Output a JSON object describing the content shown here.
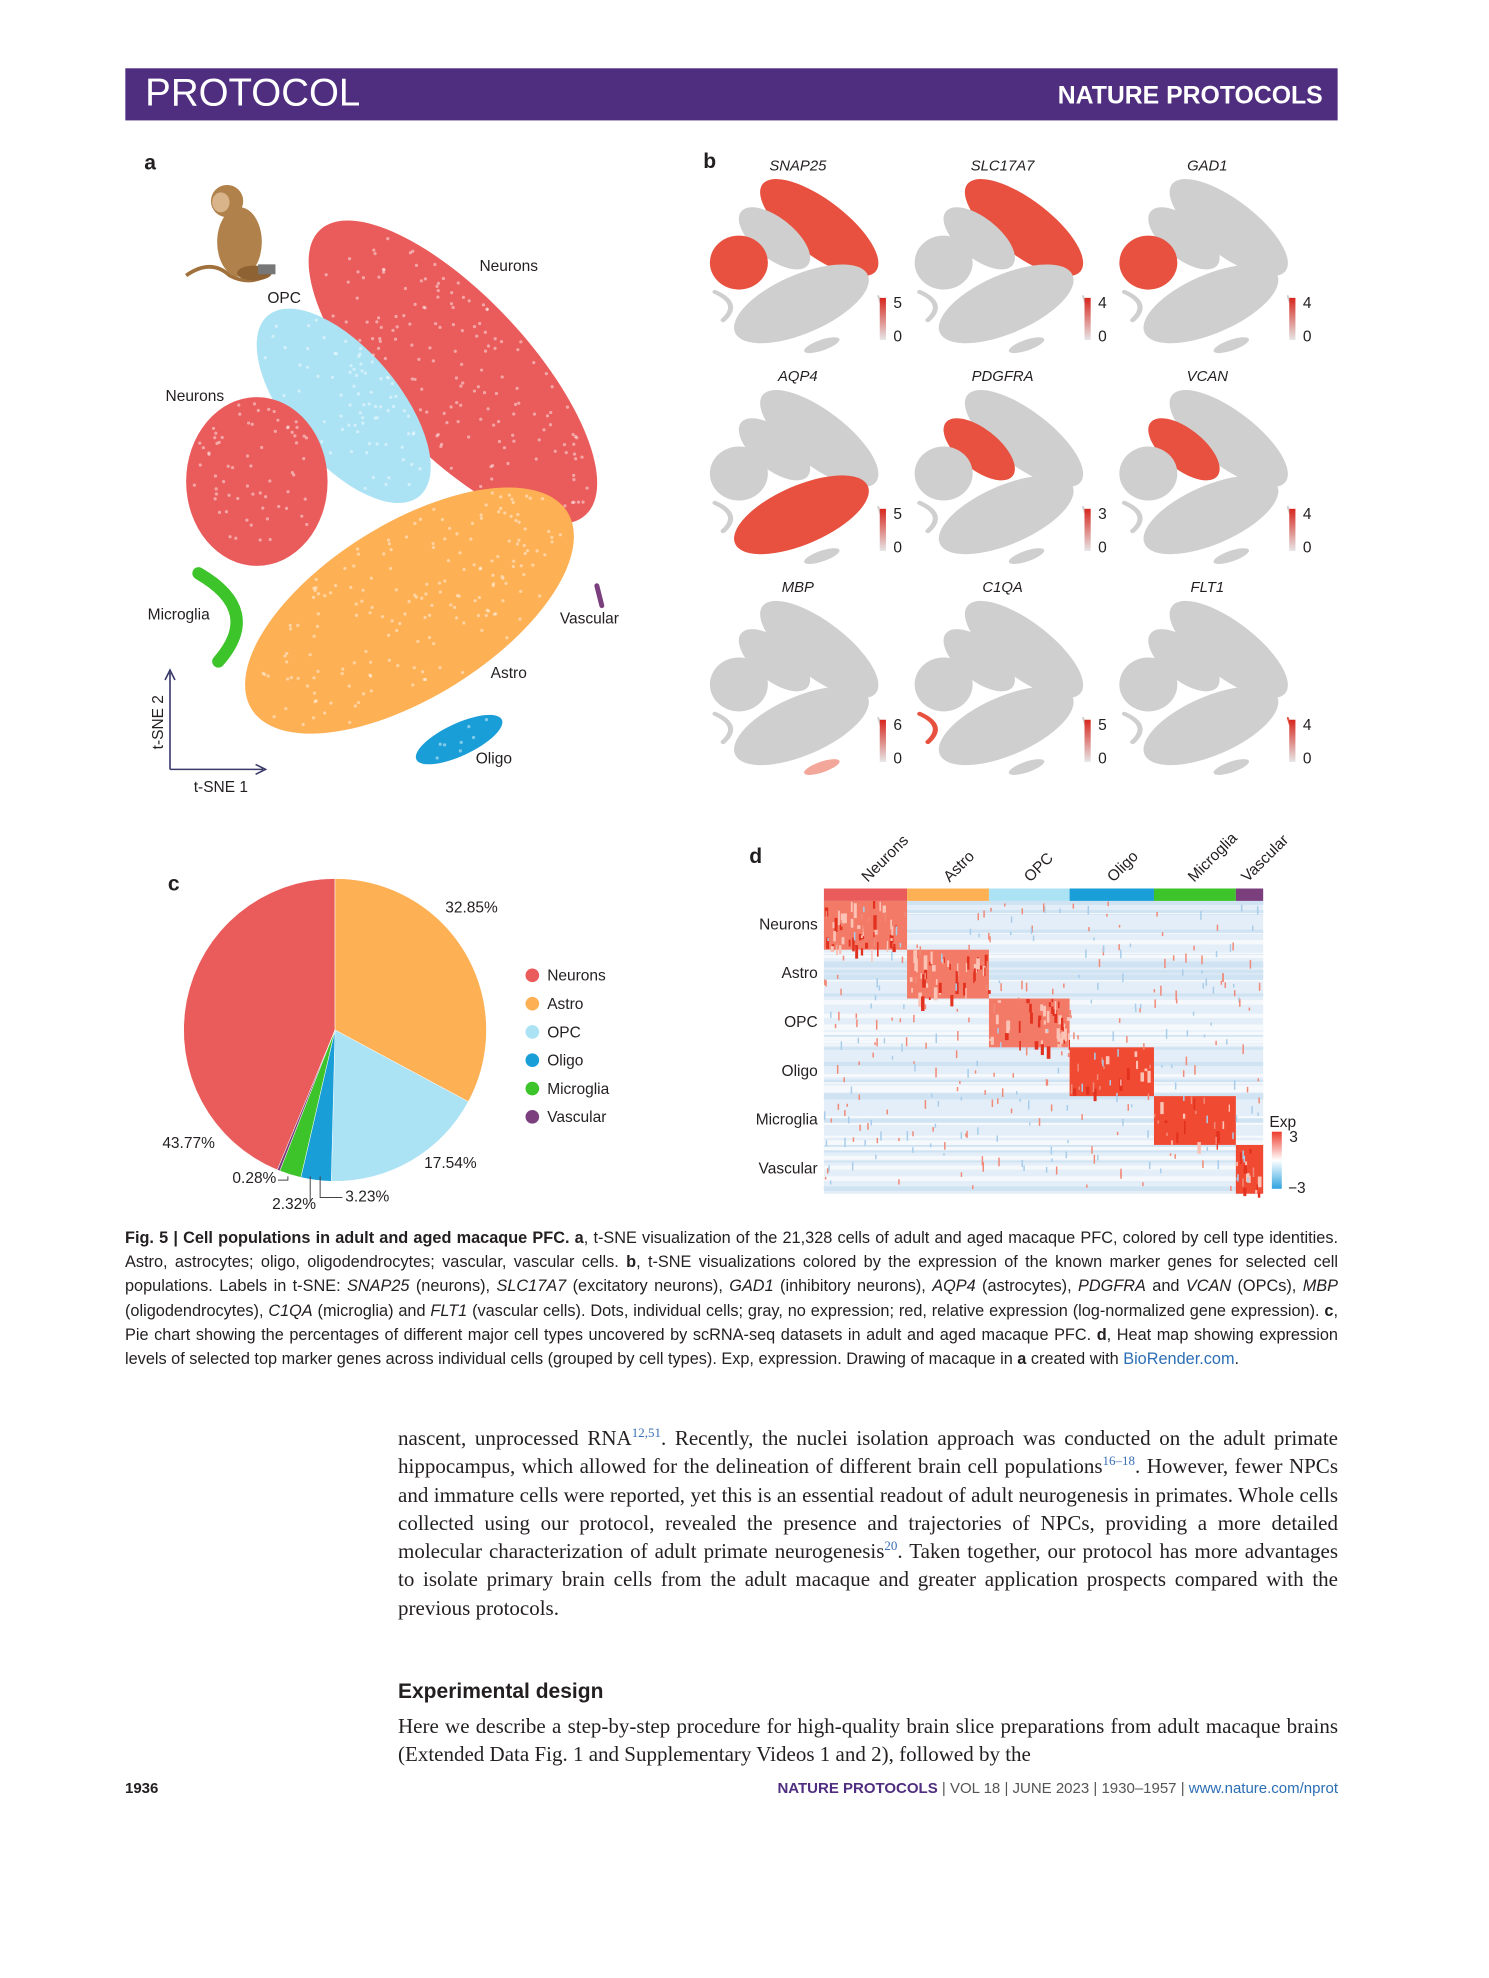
{
  "header": {
    "section": "PROTOCOL",
    "journal": "NATURE PROTOCOLS"
  },
  "figure": {
    "panel_a": {
      "letter": "a",
      "labels": [
        "Neurons",
        "OPC",
        "Neurons",
        "Microglia",
        "Vascular",
        "Astro",
        "Oligo"
      ],
      "x_axis": "t-SNE 1",
      "y_axis": "t-SNE 2"
    },
    "panel_b": {
      "letter": "b",
      "plots": [
        {
          "gene": "SNAP25",
          "scale_max": 5,
          "scale_min": 0
        },
        {
          "gene": "SLC17A7",
          "scale_max": 4,
          "scale_min": 0
        },
        {
          "gene": "GAD1",
          "scale_max": 4,
          "scale_min": 0
        },
        {
          "gene": "AQP4",
          "scale_max": 5,
          "scale_min": 0
        },
        {
          "gene": "PDGFRA",
          "scale_max": 3,
          "scale_min": 0
        },
        {
          "gene": "VCAN",
          "scale_max": 4,
          "scale_min": 0
        },
        {
          "gene": "MBP",
          "scale_max": 6,
          "scale_min": 0
        },
        {
          "gene": "C1QA",
          "scale_max": 5,
          "scale_min": 0
        },
        {
          "gene": "FLT1",
          "scale_max": 4,
          "scale_min": 0
        }
      ]
    },
    "panel_c": {
      "letter": "c"
    },
    "panel_d": {
      "letter": "d",
      "columns": [
        "Neurons",
        "Astro",
        "OPC",
        "Oligo",
        "Microglia",
        "Vascular"
      ],
      "rows": [
        "Neurons",
        "Astro",
        "OPC",
        "Oligo",
        "Microglia",
        "Vascular"
      ],
      "legend_title": "Exp",
      "legend_max": 3,
      "legend_min": {
        "value": -3,
        "label": "−3"
      }
    }
  },
  "chart_data": {
    "type": "pie",
    "categories": [
      "Neurons",
      "Astro",
      "OPC",
      "Oligo",
      "Microglia",
      "Vascular"
    ],
    "values": [
      43.77,
      32.85,
      17.54,
      3.23,
      2.32,
      0.28
    ],
    "value_labels": [
      "43.77%",
      "32.85%",
      "17.54%",
      "3.23%",
      "2.32%",
      "0.28%"
    ],
    "colors": [
      "#ea5b5b",
      "#fdb054",
      "#abe3f4",
      "#1a9ed8",
      "#3cc42a",
      "#7b3f7e"
    ]
  },
  "caption": [
    "Fig. 5 | Cell populations in adult and aged macaque PFC. ",
    "a",
    ", t-SNE visualization of the 21,328 cells of adult and aged macaque PFC, colored by cell type identities. Astro, astrocytes; oligo, oligodendrocytes; vascular, vascular cells. ",
    "b",
    ", t-SNE visualizations colored by the expression of the known marker genes for selected cell populations. Labels in t-SNE: ",
    "SNAP25",
    " (neurons), ",
    "SLC17A7",
    " (excitatory neurons), ",
    "GAD1",
    " (inhibitory neurons), ",
    "AQP4",
    " (astrocytes), ",
    "PDGFRA",
    " and ",
    "VCAN",
    " (OPCs), ",
    "MBP",
    " (oligodendrocytes), ",
    "C1QA",
    " (microglia) and ",
    "FLT1",
    " (vascular cells). Dots, individual cells; gray, no expression; red, relative expression (log-normalized gene expression). ",
    "c",
    ", Pie chart showing the percentages of different major cell types uncovered by scRNA-seq datasets in adult and aged macaque PFC. ",
    "d",
    ", Heat map showing expression levels of selected top marker genes across individual cells (grouped by cell types). Exp, expression. Drawing of macaque in ",
    "a",
    " created with ",
    "BioRender.com",
    "."
  ],
  "body": {
    "paragraph_1": [
      "nascent, unprocessed RNA",
      "12,51",
      ". Recently, the nuclei isolation approach was conducted on the adult primate hippocampus, which allowed for the delineation of different brain cell populations",
      "16–18",
      ". However, fewer NPCs and immature cells were reported, yet this is an essential readout of adult neurogenesis in primates. Whole cells collected using our protocol, revealed the presence and trajectories of NPCs, providing a more detailed molecular characterization of adult primate neurogenesis",
      "20",
      ". Taken together, our protocol has more advantages to isolate primary brain cells from the adult macaque and greater application prospects compared with the previous protocols."
    ],
    "heading": "Experimental design",
    "paragraph_2": "Here we describe a step-by-step procedure for high-quality brain slice preparations from adult macaque brains (Extended Data Fig. 1 and Supplementary Videos 1 and 2), followed by the"
  },
  "footer": {
    "page": "1936",
    "journal": "NATURE PROTOCOLS",
    "details": " | VOL 18 | JUNE 2023 | 1930–1957 | ",
    "url": "www.nature.com/nprot"
  }
}
